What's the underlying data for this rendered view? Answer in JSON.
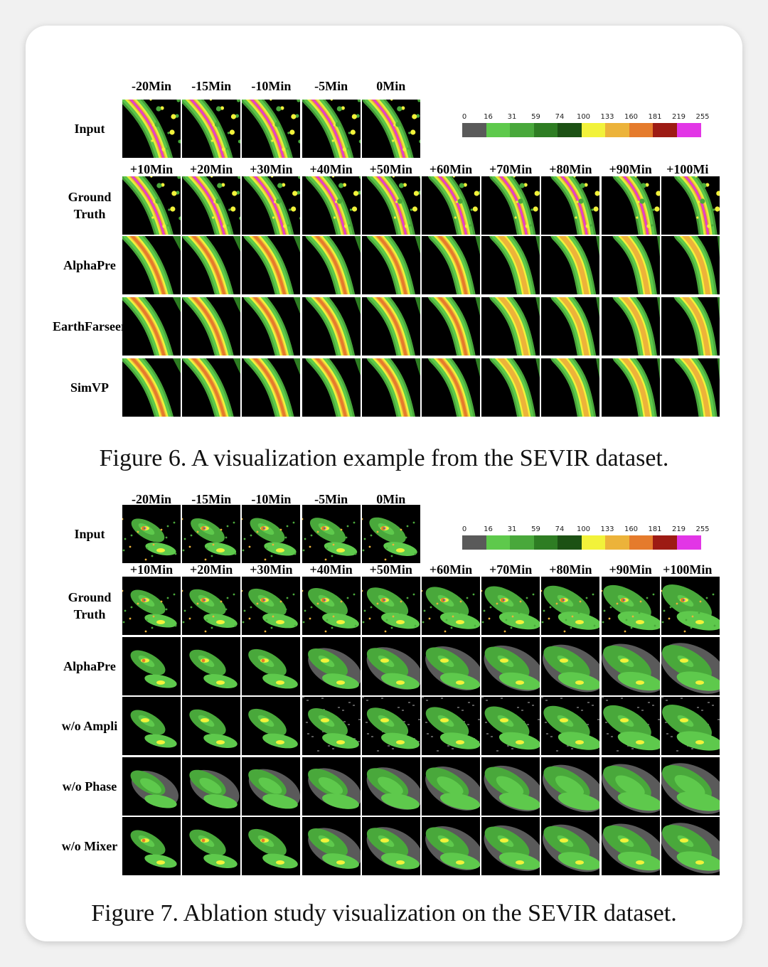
{
  "figures": [
    {
      "caption": "Figure 6. A visualization example from the SEVIR dataset.",
      "input_times": [
        "-20Min",
        "-15Min",
        "-10Min",
        "-5Min",
        "0Min"
      ],
      "output_times": [
        "+10Min",
        "+20Min",
        "+30Min",
        "+40Min",
        "+50Min",
        "+60Min",
        "+70Min",
        "+80Min",
        "+90Min",
        "+100Mi"
      ],
      "rows": [
        {
          "label": "Input",
          "style": "front-radar",
          "n": 5
        },
        {
          "label": "Ground\nTruth",
          "style": "front-radar",
          "n": 10
        },
        {
          "label": "AlphaPre",
          "style": "front-smooth",
          "n": 10
        },
        {
          "label": "EarthFarseer",
          "style": "front-smooth",
          "n": 10
        },
        {
          "label": "SimVP",
          "style": "front-smooth",
          "n": 10
        }
      ]
    },
    {
      "caption": "Figure 7. Ablation study visualization on the SEVIR dataset.",
      "input_times": [
        "-20Min",
        "-15Min",
        "-10Min",
        "-5Min",
        "0Min"
      ],
      "output_times": [
        "+10Min",
        "+20Min",
        "+30Min",
        "+40Min",
        "+50Min",
        "+60Min",
        "+70Min",
        "+80Min",
        "+90Min",
        "+100Min"
      ],
      "rows": [
        {
          "label": "Input",
          "style": "cell-radar",
          "n": 5
        },
        {
          "label": "Ground\nTruth",
          "style": "cell-radar",
          "n": 10
        },
        {
          "label": "AlphaPre",
          "style": "cell-smooth",
          "n": 10
        },
        {
          "label": "w/o Ampli",
          "style": "cell-noisy",
          "n": 10
        },
        {
          "label": "w/o Phase",
          "style": "cell-blurry",
          "n": 10
        },
        {
          "label": "w/o Mixer",
          "style": "cell-smooth",
          "n": 10
        }
      ]
    }
  ],
  "colorbar": {
    "ticks": [
      "0",
      "16",
      "31",
      "59",
      "74",
      "100",
      "133",
      "160",
      "181",
      "219",
      "255"
    ],
    "colors": [
      "#5a5a5a",
      "#5ec94c",
      "#49a83b",
      "#2e7d23",
      "#1c5114",
      "#f2f23a",
      "#ecb33a",
      "#e57b2c",
      "#9d1b14",
      "#e236e6"
    ]
  }
}
